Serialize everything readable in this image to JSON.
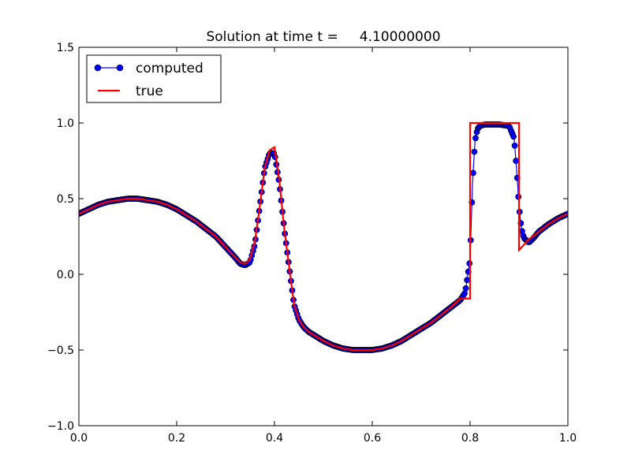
{
  "chart_data": {
    "type": "line",
    "title": "Solution at time t =     4.10000000",
    "xlabel": "",
    "ylabel": "",
    "xlim": [
      0.0,
      1.0
    ],
    "ylim": [
      -1.0,
      1.5
    ],
    "xticks": [
      "0.0",
      "0.2",
      "0.4",
      "0.6",
      "0.8",
      "1.0"
    ],
    "yticks": [
      "−1.0",
      "−0.5",
      "0.0",
      "0.5",
      "1.0",
      "1.5"
    ],
    "grid": false,
    "legend_position": "upper-left",
    "series": [
      {
        "name": "computed",
        "style": "line-with-circle-markers",
        "color": "#0000ff",
        "marker_edge_color": "#000000",
        "x": [
          0.0,
          0.02,
          0.04,
          0.06,
          0.08,
          0.1,
          0.12,
          0.14,
          0.16,
          0.18,
          0.2,
          0.22,
          0.24,
          0.26,
          0.28,
          0.3,
          0.32,
          0.33,
          0.34,
          0.35,
          0.36,
          0.37,
          0.38,
          0.39,
          0.4,
          0.41,
          0.42,
          0.43,
          0.44,
          0.45,
          0.46,
          0.47,
          0.48,
          0.5,
          0.52,
          0.54,
          0.56,
          0.58,
          0.6,
          0.62,
          0.64,
          0.66,
          0.68,
          0.7,
          0.72,
          0.74,
          0.76,
          0.78,
          0.79,
          0.8,
          0.805,
          0.81,
          0.815,
          0.82,
          0.83,
          0.84,
          0.86,
          0.88,
          0.89,
          0.895,
          0.9,
          0.905,
          0.91,
          0.92,
          0.93,
          0.94,
          0.96,
          0.98,
          1.0
        ],
        "y": [
          0.4,
          0.43,
          0.46,
          0.48,
          0.49,
          0.5,
          0.5,
          0.49,
          0.48,
          0.46,
          0.43,
          0.39,
          0.35,
          0.3,
          0.25,
          0.18,
          0.11,
          0.07,
          0.06,
          0.08,
          0.2,
          0.45,
          0.7,
          0.8,
          0.8,
          0.6,
          0.3,
          0.05,
          -0.2,
          -0.3,
          -0.35,
          -0.38,
          -0.4,
          -0.44,
          -0.47,
          -0.49,
          -0.5,
          -0.5,
          -0.5,
          -0.49,
          -0.47,
          -0.44,
          -0.4,
          -0.36,
          -0.32,
          -0.27,
          -0.22,
          -0.17,
          -0.12,
          0.1,
          0.6,
          0.88,
          0.96,
          0.98,
          0.99,
          0.99,
          0.99,
          0.98,
          0.9,
          0.7,
          0.45,
          0.3,
          0.24,
          0.21,
          0.24,
          0.28,
          0.33,
          0.37,
          0.4
        ]
      },
      {
        "name": "true",
        "style": "line",
        "color": "#ff0000",
        "x": [
          0.0,
          0.02,
          0.04,
          0.06,
          0.08,
          0.1,
          0.12,
          0.14,
          0.16,
          0.18,
          0.2,
          0.22,
          0.24,
          0.26,
          0.28,
          0.3,
          0.32,
          0.33,
          0.34,
          0.35,
          0.36,
          0.37,
          0.38,
          0.39,
          0.4,
          0.41,
          0.42,
          0.43,
          0.44,
          0.45,
          0.46,
          0.47,
          0.48,
          0.5,
          0.52,
          0.54,
          0.56,
          0.58,
          0.6,
          0.62,
          0.64,
          0.66,
          0.68,
          0.7,
          0.72,
          0.74,
          0.76,
          0.78,
          0.8,
          0.8,
          0.9,
          0.9,
          0.92,
          0.94,
          0.96,
          0.98,
          1.0
        ],
        "y": [
          0.4,
          0.43,
          0.46,
          0.48,
          0.49,
          0.5,
          0.5,
          0.49,
          0.48,
          0.46,
          0.43,
          0.39,
          0.35,
          0.3,
          0.25,
          0.18,
          0.11,
          0.08,
          0.07,
          0.1,
          0.22,
          0.45,
          0.7,
          0.82,
          0.84,
          0.62,
          0.3,
          0.05,
          -0.2,
          -0.3,
          -0.35,
          -0.38,
          -0.4,
          -0.44,
          -0.47,
          -0.49,
          -0.5,
          -0.5,
          -0.5,
          -0.49,
          -0.47,
          -0.44,
          -0.4,
          -0.36,
          -0.32,
          -0.27,
          -0.22,
          -0.16,
          -0.16,
          1.0,
          1.0,
          0.16,
          0.23,
          0.28,
          0.33,
          0.37,
          0.4
        ]
      }
    ]
  }
}
